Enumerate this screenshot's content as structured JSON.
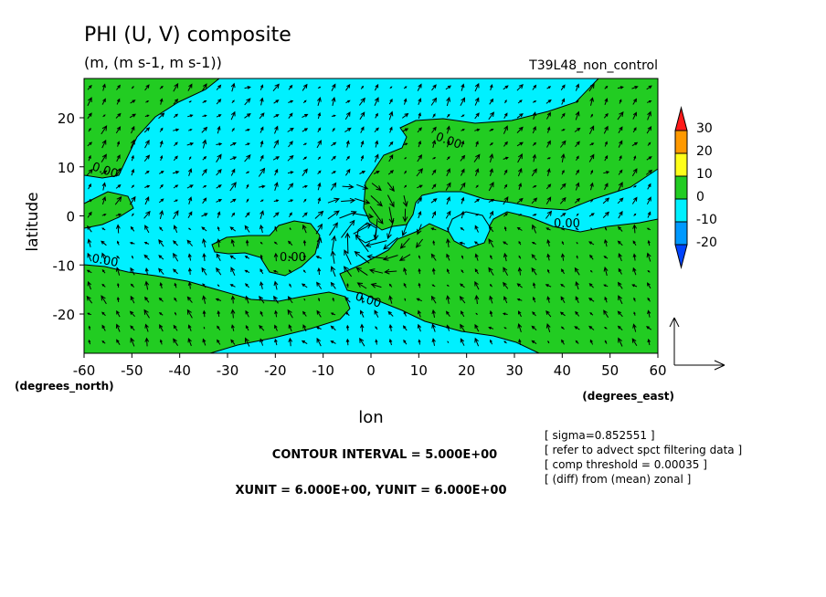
{
  "chart_data": {
    "type": "contour",
    "title": "PHI (U, V) composite",
    "subtitle": "(m, (m s-1, m s-1))",
    "run_label": "T39L48_non_control",
    "xlabel": "lon",
    "ylabel": "latitude",
    "xunit_label": "(degrees_east)",
    "yunit_label": "(degrees_north)",
    "xlim": [
      -60,
      60
    ],
    "ylim": [
      -28,
      28
    ],
    "xticks": [
      -60,
      -50,
      -40,
      -30,
      -20,
      -10,
      0,
      10,
      20,
      30,
      40,
      50,
      60
    ],
    "yticks": [
      -20,
      -10,
      0,
      10,
      20
    ],
    "contour_label": "0.00",
    "contour_interval_text": "CONTOUR INTERVAL = 5.000E+00",
    "unit_vector_text": "XUNIT = 6.000E+00, YUNIT = 6.000E+00",
    "notes": [
      "[ sigma=0.852551 ]",
      "[ refer to advect spct filtering data ]",
      "[ comp threshold = 0.00035 ]",
      "[ (diff) from (mean) zonal ]"
    ],
    "colorbar": {
      "labels": [
        "30",
        "20",
        "10",
        "0",
        "-10",
        "-20"
      ],
      "colors": [
        "#ff1a1a",
        "#ff9900",
        "#ffff1a",
        "#22cc22",
        "#00f0ff",
        "#0099ff",
        "#0044ff"
      ]
    },
    "colors": {
      "positive": "#22cc22",
      "negative": "#00f0ff"
    }
  }
}
